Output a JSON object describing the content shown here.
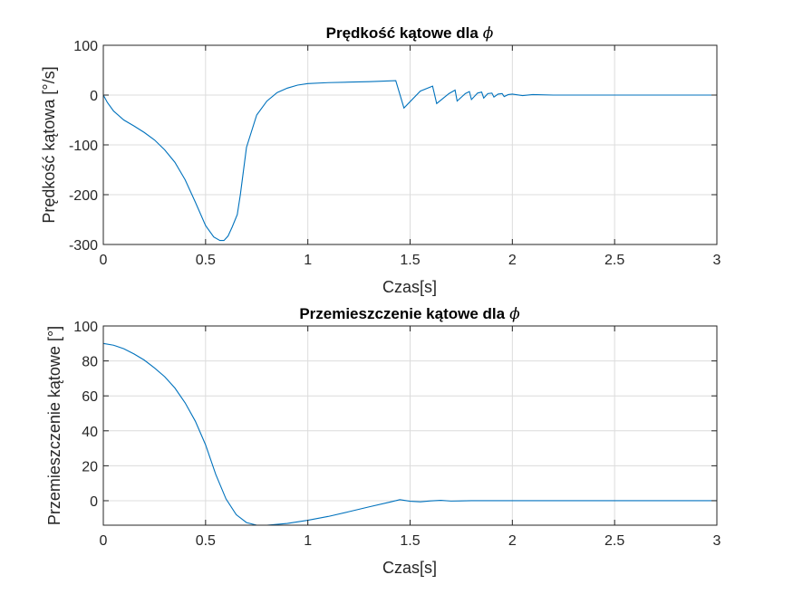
{
  "chart_data": [
    {
      "type": "line",
      "title": "Prędkość kątowe dla",
      "title_symbol": "ϕ",
      "xlabel": "Czas[s]",
      "ylabel": "Prędkość kątowa [°/s]",
      "xlim": [
        0,
        3
      ],
      "ylim": [
        -300,
        100
      ],
      "xticks": [
        0,
        0.5,
        1,
        1.5,
        2,
        2.5,
        3
      ],
      "xtick_labels": [
        "0",
        "0.5",
        "1",
        "1.5",
        "2",
        "2.5",
        "3"
      ],
      "yticks": [
        -300,
        -200,
        -100,
        0,
        100
      ],
      "ytick_labels": [
        "-300",
        "-200",
        "-100",
        "0",
        "100"
      ],
      "grid": true,
      "color": "#0072bd",
      "series": [
        {
          "name": "predkosc",
          "x": [
            0,
            0.02,
            0.05,
            0.1,
            0.15,
            0.2,
            0.25,
            0.3,
            0.35,
            0.4,
            0.45,
            0.5,
            0.54,
            0.57,
            0.59,
            0.61,
            0.63,
            0.655,
            0.67,
            0.7,
            0.75,
            0.8,
            0.85,
            0.9,
            0.95,
            1.0,
            1.1,
            1.2,
            1.3,
            1.43,
            1.47,
            1.55,
            1.61,
            1.63,
            1.69,
            1.72,
            1.73,
            1.77,
            1.79,
            1.8,
            1.83,
            1.85,
            1.86,
            1.88,
            1.9,
            1.91,
            1.93,
            1.95,
            1.96,
            1.98,
            2.0,
            2.05,
            2.1,
            2.2,
            2.3,
            2.5,
            2.75,
            3.0
          ],
          "y": [
            0,
            -15,
            -32,
            -50,
            -62,
            -75,
            -90,
            -110,
            -135,
            -170,
            -215,
            -262,
            -285,
            -292,
            -292,
            -283,
            -265,
            -240,
            -200,
            -105,
            -40,
            -12,
            5,
            14,
            20,
            23,
            25,
            26,
            27,
            29,
            -26,
            8,
            18,
            -17,
            3,
            10,
            -12,
            3,
            7,
            -9,
            4,
            6,
            -6,
            3,
            4,
            -4,
            2,
            3,
            -3,
            1,
            2,
            -1,
            1,
            0,
            0,
            0,
            0,
            0
          ]
        }
      ]
    },
    {
      "type": "line",
      "title": "Przemieszczenie kątowe dla",
      "title_symbol": "ϕ",
      "xlabel": "Czas[s]",
      "ylabel": "Przemieszczenie kątowe [°]",
      "xlim": [
        0,
        3
      ],
      "ylim": [
        -14,
        100
      ],
      "xticks": [
        0,
        0.5,
        1,
        1.5,
        2,
        2.5,
        3
      ],
      "xtick_labels": [
        "0",
        "0.5",
        "1",
        "1.5",
        "2",
        "2.5",
        "3"
      ],
      "yticks": [
        0,
        20,
        40,
        60,
        80,
        100
      ],
      "ytick_labels": [
        "0",
        "20",
        "40",
        "60",
        "80",
        "100"
      ],
      "grid": true,
      "color": "#0072bd",
      "series": [
        {
          "name": "przemieszczenie",
          "x": [
            0,
            0.05,
            0.1,
            0.15,
            0.2,
            0.25,
            0.3,
            0.35,
            0.4,
            0.45,
            0.5,
            0.55,
            0.6,
            0.65,
            0.7,
            0.75,
            0.8,
            0.85,
            0.9,
            1.0,
            1.1,
            1.2,
            1.3,
            1.4,
            1.45,
            1.5,
            1.55,
            1.6,
            1.65,
            1.7,
            1.8,
            2.0,
            2.5,
            3.0
          ],
          "y": [
            90,
            89,
            87,
            84,
            80.5,
            76,
            71,
            64.5,
            56,
            45.5,
            32,
            15,
            1,
            -8,
            -12.5,
            -14,
            -14,
            -13.5,
            -13,
            -11.2,
            -9,
            -6.3,
            -3.5,
            -0.8,
            0.6,
            -0.3,
            -0.6,
            -0.1,
            0.2,
            -0.2,
            0,
            0,
            0,
            0
          ]
        }
      ]
    }
  ]
}
